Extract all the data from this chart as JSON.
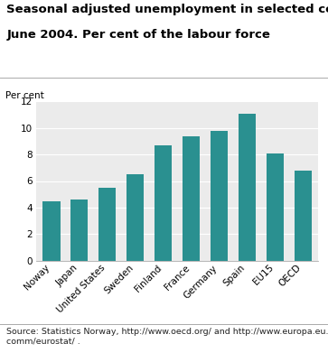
{
  "title_line1": "Seasonal adjusted unemployment in selected countries.",
  "title_line2": "June 2004. Per cent of the labour force",
  "ylabel": "Per cent",
  "categories": [
    "Noway",
    "Japan",
    "United States",
    "Sweden",
    "Finland",
    "France",
    "Germany",
    "Spain",
    "EU15",
    "OECD"
  ],
  "values": [
    4.5,
    4.6,
    5.5,
    6.5,
    8.7,
    9.4,
    9.8,
    11.1,
    8.1,
    6.8
  ],
  "bar_color": "#2a9090",
  "ylim": [
    0,
    12
  ],
  "yticks": [
    0,
    2,
    4,
    6,
    8,
    10,
    12
  ],
  "source_text": "Source: Statistics Norway, http://www.oecd.org/ and http://www.europa.eu.int/\ncomm/eurostat/ .",
  "plot_bg": "#ebebeb",
  "fig_bg": "#ffffff",
  "title_fontsize": 9.5,
  "tick_fontsize": 7.5,
  "ylabel_fontsize": 7.5,
  "source_fontsize": 6.8,
  "grid_color": "#ffffff",
  "bar_width": 0.62
}
